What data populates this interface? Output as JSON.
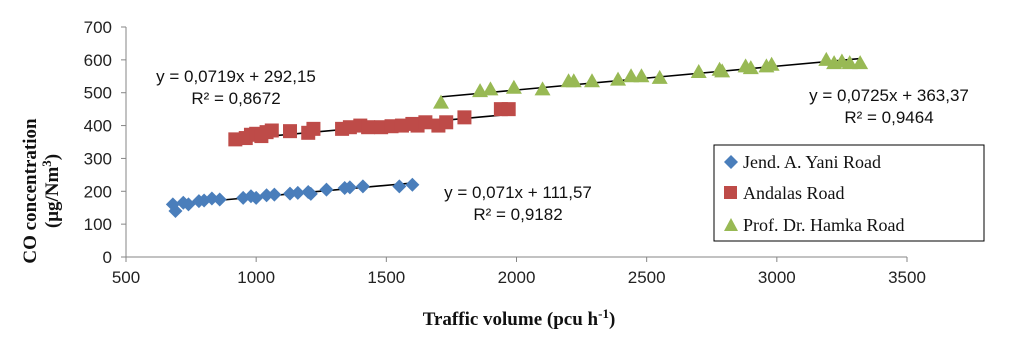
{
  "chart_data": {
    "type": "scatter",
    "xlabel": "Traffic volume (pcu h",
    "xlabel_sup": "-1",
    "xlabel_end": ")",
    "ylabel_line1": "CO concentration",
    "ylabel_line2": "(μg/Nm",
    "ylabel_sup": "3",
    "ylabel_end": ")",
    "xlim": [
      500,
      3500
    ],
    "ylim": [
      0,
      700
    ],
    "xticks": [
      500,
      1000,
      1500,
      2000,
      2500,
      3000,
      3500
    ],
    "yticks": [
      0,
      100,
      200,
      300,
      400,
      500,
      600,
      700
    ],
    "grid": false,
    "legend_position": "right",
    "series": [
      {
        "name": "Jend. A. Yani Road",
        "marker": "diamond",
        "color": "#4a7ebb",
        "x": [
          680,
          690,
          720,
          740,
          780,
          800,
          830,
          860,
          950,
          980,
          1000,
          1040,
          1070,
          1130,
          1160,
          1200,
          1210,
          1270,
          1340,
          1360,
          1410,
          1550,
          1600
        ],
        "y": [
          160,
          140,
          165,
          160,
          170,
          172,
          178,
          175,
          180,
          185,
          180,
          188,
          190,
          193,
          195,
          198,
          192,
          205,
          210,
          212,
          215,
          215,
          220
        ],
        "trendline": {
          "x": [
            680,
            1600
          ],
          "equation": "y = 0,071x + 111,57",
          "r2": "R² = 0,9182"
        }
      },
      {
        "name": "Andalas Road",
        "marker": "square",
        "color": "#be4b48",
        "x": [
          920,
          960,
          980,
          1000,
          1020,
          1040,
          1060,
          1130,
          1200,
          1220,
          1330,
          1360,
          1400,
          1430,
          1480,
          1520,
          1560,
          1600,
          1620,
          1650,
          1700,
          1730,
          1800,
          1940,
          1970
        ],
        "y": [
          358,
          362,
          372,
          375,
          368,
          380,
          385,
          383,
          378,
          390,
          390,
          395,
          400,
          395,
          395,
          398,
          400,
          405,
          400,
          410,
          400,
          410,
          425,
          450,
          450
        ],
        "trendline": {
          "x": [
            920,
            1970
          ],
          "equation": "y = 0,0719x + 292,15",
          "r2": "R² = 0,8672"
        }
      },
      {
        "name": "Prof. Dr. Hamka Road",
        "marker": "triangle",
        "color": "#98b954",
        "x": [
          1710,
          1860,
          1900,
          1990,
          2100,
          2200,
          2220,
          2290,
          2390,
          2440,
          2480,
          2550,
          2700,
          2780,
          2790,
          2880,
          2900,
          2960,
          2980,
          3190,
          3220,
          3250,
          3280,
          3320
        ],
        "y": [
          470,
          505,
          510,
          515,
          510,
          535,
          535,
          535,
          540,
          550,
          550,
          545,
          563,
          570,
          565,
          580,
          575,
          580,
          585,
          600,
          590,
          595,
          590,
          590
        ],
        "trendline": {
          "x": [
            1710,
            3320
          ],
          "equation": "y = 0,0725x + 363,37",
          "r2": "R² = 0,9464"
        }
      }
    ]
  }
}
